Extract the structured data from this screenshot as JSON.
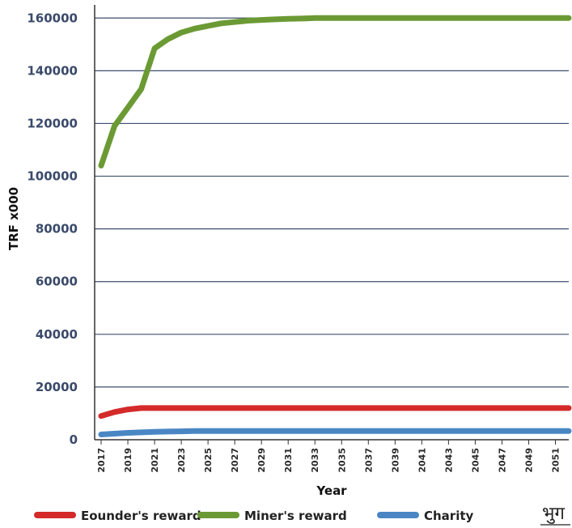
{
  "chart_data": {
    "type": "line",
    "title": "",
    "xlabel": "Year",
    "ylabel": "TRF x000",
    "ylim": [
      0,
      165000
    ],
    "yticks": [
      0,
      20000,
      40000,
      60000,
      80000,
      100000,
      120000,
      140000,
      160000
    ],
    "ytick_labels": [
      "0",
      "20000",
      "40000",
      "60000",
      "80000",
      "100000",
      "120000",
      "140000",
      "160000"
    ],
    "xlim": [
      2017,
      2052
    ],
    "xticks": [
      2017,
      2019,
      2021,
      2023,
      2025,
      2027,
      2029,
      2031,
      2033,
      2035,
      2037,
      2039,
      2041,
      2043,
      2045,
      2047,
      2049,
      2051
    ],
    "xtick_labels": [
      "2017",
      "2019",
      "2021",
      "2023",
      "2025",
      "2027",
      "2029",
      "2031",
      "2033",
      "2035",
      "2037",
      "2039",
      "2041",
      "2043",
      "2045",
      "2047",
      "2049",
      "2051"
    ],
    "grid": "horizontal",
    "legend_position": "bottom",
    "x": [
      2017,
      2018,
      2019,
      2020,
      2021,
      2022,
      2023,
      2024,
      2025,
      2026,
      2027,
      2028,
      2029,
      2030,
      2031,
      2032,
      2033,
      2034,
      2035,
      2036,
      2037,
      2038,
      2039,
      2040,
      2041,
      2042,
      2043,
      2044,
      2045,
      2046,
      2047,
      2048,
      2049,
      2050,
      2051,
      2052
    ],
    "series": [
      {
        "name": "Eounder's reward",
        "color": "#d42a2a",
        "values": [
          9000,
          10500,
          11500,
          12000,
          12000,
          12000,
          12000,
          12000,
          12000,
          12000,
          12000,
          12000,
          12000,
          12000,
          12000,
          12000,
          12000,
          12000,
          12000,
          12000,
          12000,
          12000,
          12000,
          12000,
          12000,
          12000,
          12000,
          12000,
          12000,
          12000,
          12000,
          12000,
          12000,
          12000,
          12000,
          12000
        ]
      },
      {
        "name": "Miner's reward",
        "color": "#6b9a34",
        "values": [
          104000,
          119000,
          126000,
          133000,
          148500,
          152000,
          154500,
          156000,
          157000,
          158000,
          158500,
          159000,
          159300,
          159500,
          159700,
          159800,
          160000,
          160000,
          160000,
          160000,
          160000,
          160000,
          160000,
          160000,
          160000,
          160000,
          160000,
          160000,
          160000,
          160000,
          160000,
          160000,
          160000,
          160000,
          160000,
          160000
        ]
      },
      {
        "name": "Charity",
        "color": "#4a86c4",
        "values": [
          2000,
          2300,
          2600,
          2800,
          3000,
          3100,
          3200,
          3300,
          3300,
          3300,
          3300,
          3300,
          3300,
          3300,
          3300,
          3300,
          3300,
          3300,
          3300,
          3300,
          3300,
          3300,
          3300,
          3300,
          3300,
          3300,
          3300,
          3300,
          3300,
          3300,
          3300,
          3300,
          3300,
          3300,
          3300,
          3300
        ]
      }
    ]
  },
  "corner_text": "भुग"
}
